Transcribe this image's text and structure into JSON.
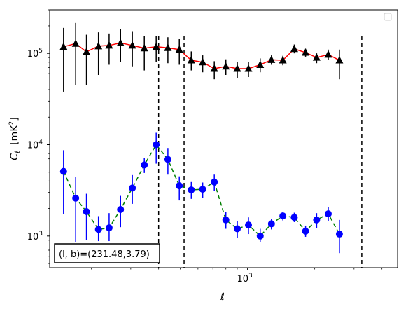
{
  "chart_data": {
    "type": "scatter",
    "xscale": "log",
    "yscale": "log",
    "xlim": [
      130,
      4700
    ],
    "ylim": [
      450,
      300000
    ],
    "xlabel": "ℓ",
    "ylabel_main": "C",
    "ylabel_sub": "ℓ",
    "ylabel_unit": "[mK",
    "ylabel_unit_sup": "2",
    "ylabel_unit_close": "]",
    "xticks": [
      {
        "value": 1000,
        "base": "10",
        "exp": "3"
      }
    ],
    "yticks": [
      {
        "value": 1000,
        "base": "10",
        "exp": "3"
      },
      {
        "value": 10000,
        "base": "10",
        "exp": "4"
      },
      {
        "value": 100000,
        "base": "10",
        "exp": "5"
      }
    ],
    "annotation": "(l, b)=(231.48,3.79)",
    "vlines": [
      400,
      520,
      3250
    ],
    "legend": "top-right (empty)",
    "grid": false,
    "colors": {
      "upper_marker": "#000000",
      "upper_line": "#ff0000",
      "lower_marker": "#0000ff",
      "lower_line": "#008000"
    },
    "series": [
      {
        "marker": "triangle",
        "line": "solid",
        "points": [
          [
            150,
            118000,
            38000,
            190000
          ],
          [
            170,
            128000,
            45000,
            215000
          ],
          [
            190,
            104000,
            45000,
            160000
          ],
          [
            215,
            120000,
            58000,
            170000
          ],
          [
            240,
            122000,
            75000,
            165000
          ],
          [
            270,
            130000,
            80000,
            185000
          ],
          [
            305,
            122000,
            72000,
            175000
          ],
          [
            345,
            114000,
            65000,
            155000
          ],
          [
            390,
            118000,
            80000,
            155000
          ],
          [
            440,
            115000,
            78000,
            150000
          ],
          [
            495,
            110000,
            75000,
            145000
          ],
          [
            560,
            84000,
            65000,
            105000
          ],
          [
            630,
            80000,
            62000,
            95000
          ],
          [
            710,
            68000,
            52000,
            82000
          ],
          [
            800,
            72000,
            58000,
            86000
          ],
          [
            900,
            68000,
            54000,
            80000
          ],
          [
            1010,
            68000,
            55000,
            80000
          ],
          [
            1140,
            75000,
            62000,
            88000
          ],
          [
            1280,
            85000,
            75000,
            95000
          ],
          [
            1440,
            84000,
            74000,
            94000
          ],
          [
            1620,
            112000,
            100000,
            125000
          ],
          [
            1820,
            102000,
            92000,
            112000
          ],
          [
            2040,
            90000,
            78000,
            100000
          ],
          [
            2300,
            97000,
            85000,
            110000
          ],
          [
            2580,
            84000,
            52000,
            110000
          ]
        ]
      },
      {
        "marker": "circle",
        "line": "dashed",
        "points": [
          [
            150,
            5100,
            1750,
            8700
          ],
          [
            170,
            2600,
            850,
            4400
          ],
          [
            190,
            1850,
            900,
            2900
          ],
          [
            215,
            1180,
            880,
            1650
          ],
          [
            240,
            1230,
            880,
            1780
          ],
          [
            270,
            1950,
            1250,
            2750
          ],
          [
            305,
            3350,
            2250,
            4650
          ],
          [
            345,
            6000,
            4900,
            7200
          ],
          [
            390,
            10000,
            6200,
            13500
          ],
          [
            440,
            6900,
            4700,
            9200
          ],
          [
            495,
            3550,
            2450,
            4500
          ],
          [
            560,
            3200,
            2550,
            3900
          ],
          [
            630,
            3250,
            2600,
            3850
          ],
          [
            710,
            3900,
            3100,
            4700
          ],
          [
            800,
            1500,
            1200,
            1850
          ],
          [
            900,
            1200,
            950,
            1450
          ],
          [
            1010,
            1320,
            1050,
            1600
          ],
          [
            1140,
            1000,
            850,
            1200
          ],
          [
            1280,
            1360,
            1180,
            1550
          ],
          [
            1440,
            1660,
            1480,
            1850
          ],
          [
            1620,
            1600,
            1420,
            1800
          ],
          [
            1820,
            1130,
            980,
            1300
          ],
          [
            2040,
            1500,
            1220,
            1780
          ],
          [
            2300,
            1750,
            1450,
            2080
          ],
          [
            2580,
            1050,
            650,
            1500
          ]
        ]
      }
    ]
  }
}
